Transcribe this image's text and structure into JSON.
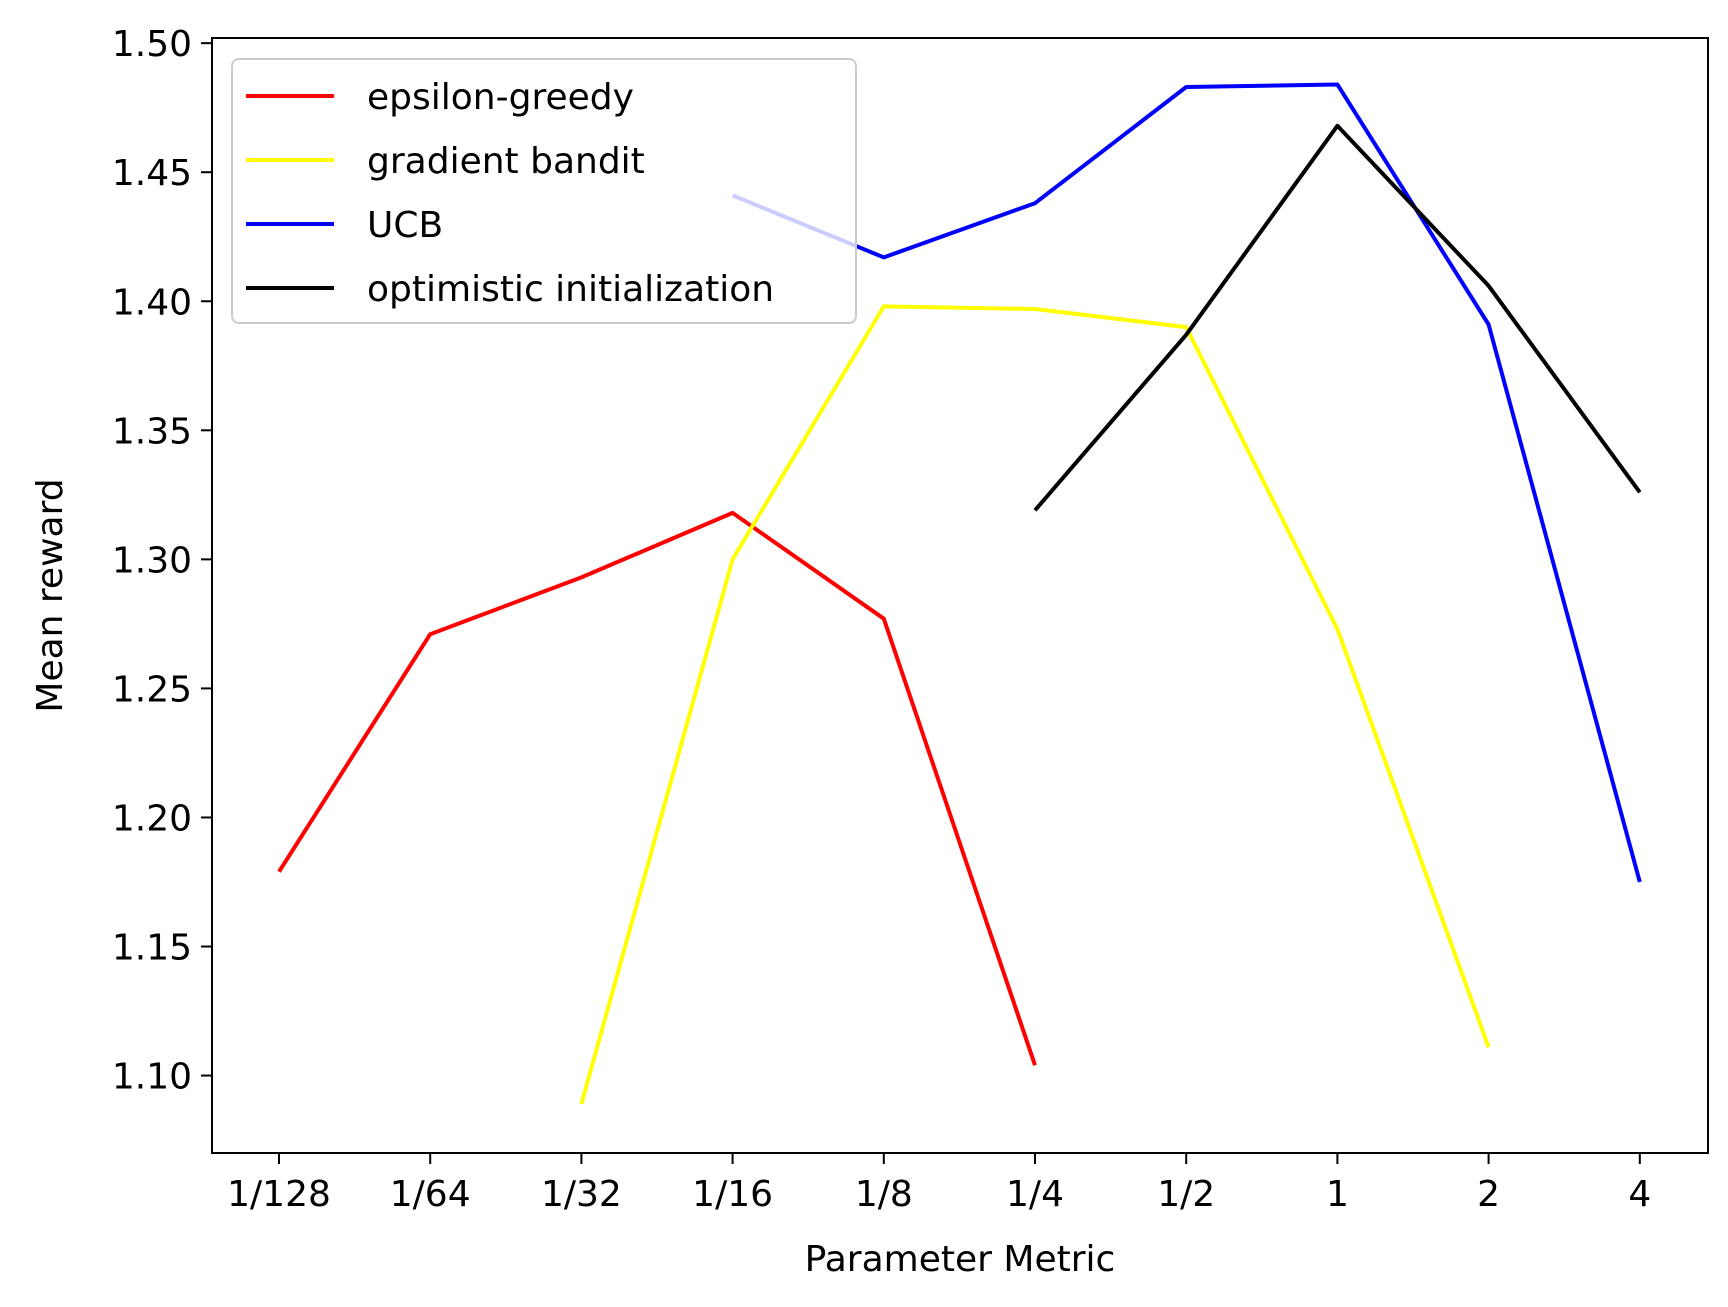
{
  "chart_data": {
    "type": "line",
    "title": "",
    "xlabel": "Parameter Metric",
    "ylabel": "Mean reward",
    "categories": [
      "1/128",
      "1/64",
      "1/32",
      "1/16",
      "1/8",
      "1/4",
      "1/2",
      "1",
      "2",
      "4"
    ],
    "ylim": [
      1.07,
      1.502
    ],
    "yticks": [
      "1.10",
      "1.15",
      "1.20",
      "1.25",
      "1.30",
      "1.35",
      "1.40",
      "1.45",
      "1.50"
    ],
    "grid": false,
    "legend_position": "upper-left",
    "series": [
      {
        "name": "epsilon-greedy",
        "color": "#ff0000",
        "values": [
          1.179,
          1.271,
          1.293,
          1.318,
          1.277,
          1.104,
          null,
          null,
          null,
          null
        ]
      },
      {
        "name": "gradient bandit",
        "color": "#ffff00",
        "values": [
          null,
          null,
          1.089,
          1.3,
          1.398,
          1.397,
          1.39,
          1.273,
          1.111,
          null
        ]
      },
      {
        "name": "UCB",
        "color": "#0000ff",
        "values": [
          null,
          null,
          null,
          1.441,
          1.417,
          1.438,
          1.483,
          1.484,
          1.391,
          1.175
        ]
      },
      {
        "name": "optimistic initialization",
        "color": "#000000",
        "values": [
          null,
          null,
          null,
          null,
          null,
          1.319,
          1.387,
          1.468,
          1.406,
          1.326
        ]
      }
    ]
  }
}
